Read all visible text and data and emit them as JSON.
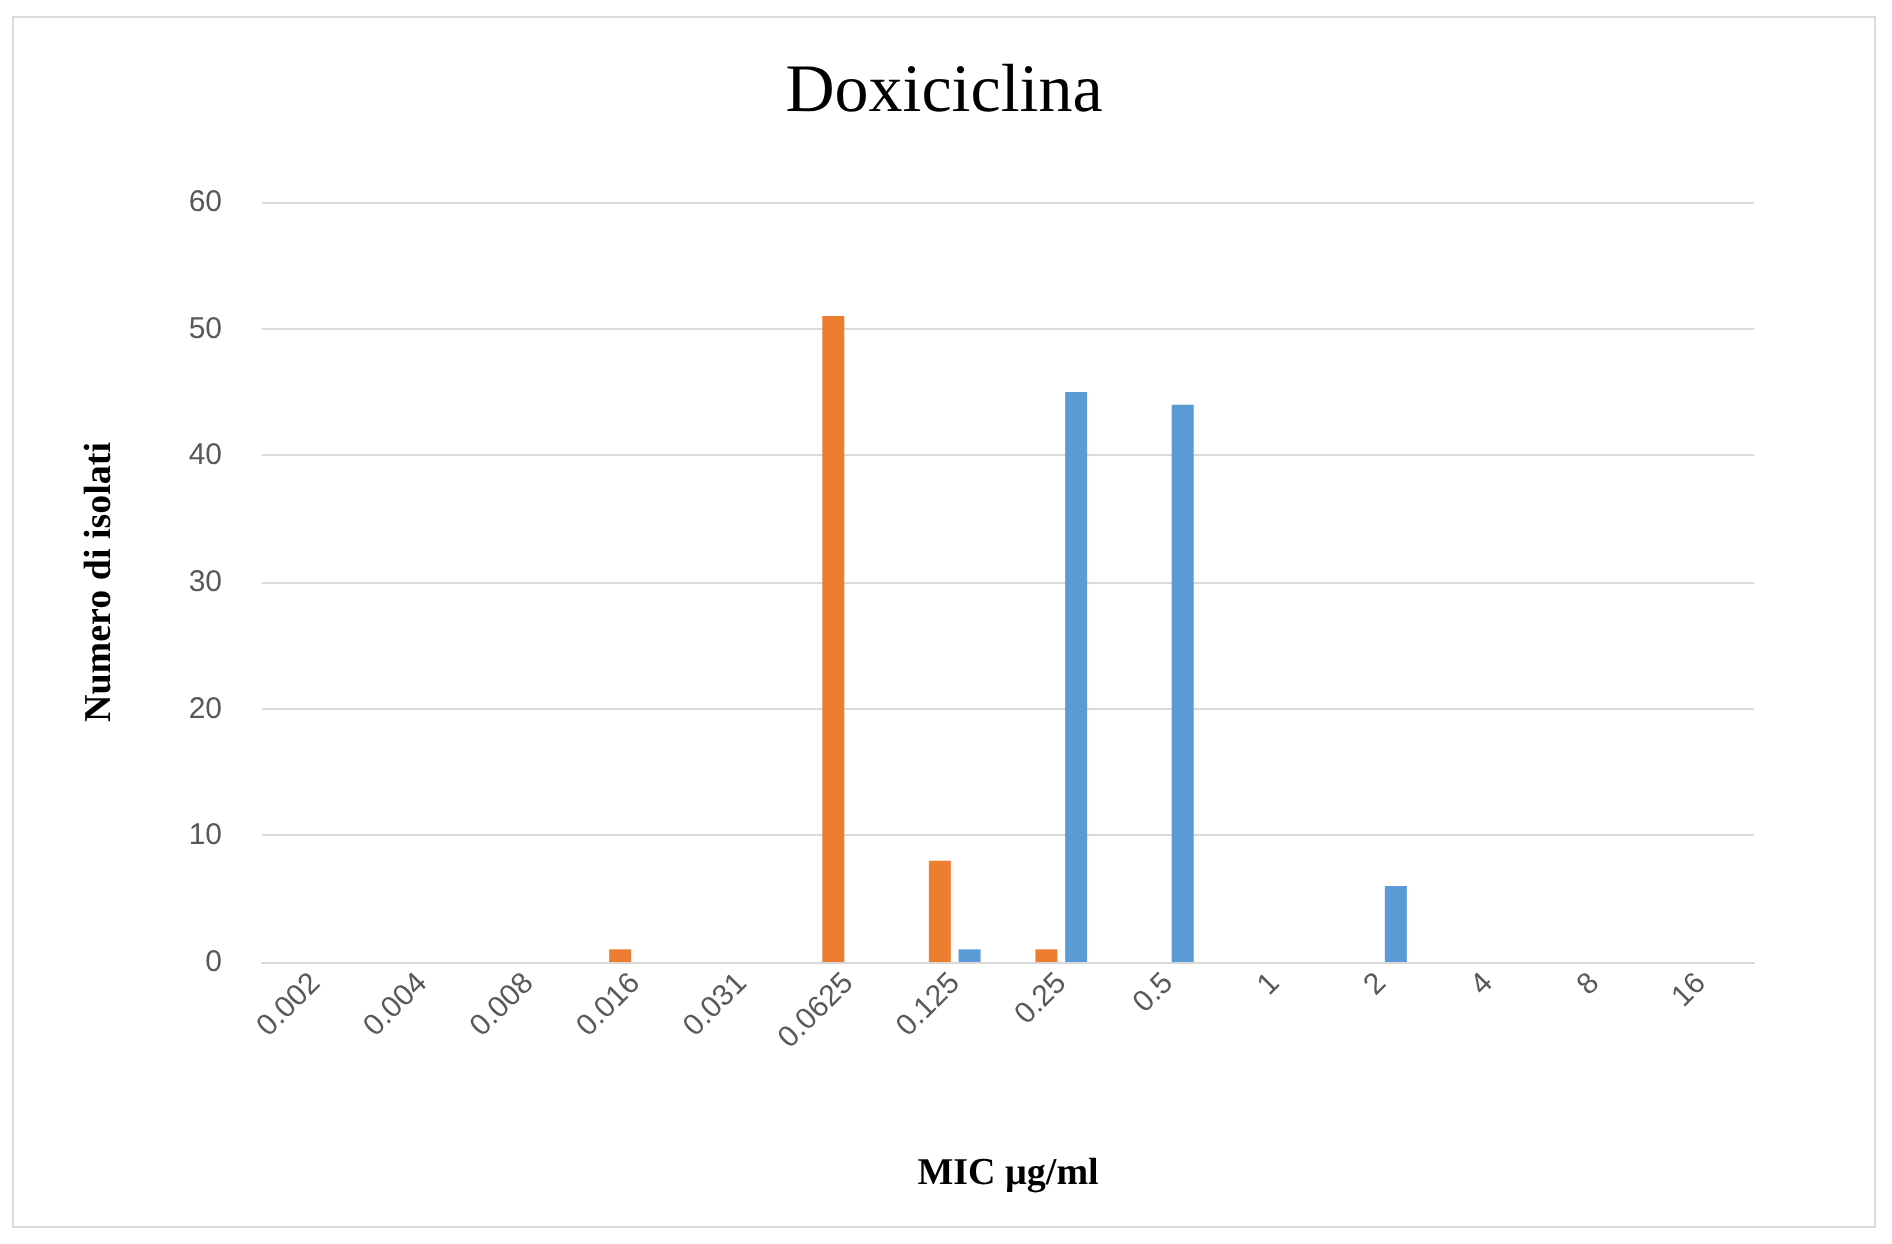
{
  "chart_data": {
    "type": "bar",
    "title": "Doxiciclina",
    "xlabel": "MIC µg/ml",
    "ylabel": "Numero di isolati",
    "categories": [
      "0.002",
      "0.004",
      "0.008",
      "0.016",
      "0.031",
      "0.0625",
      "0.125",
      "0.25",
      "0.5",
      "1",
      "2",
      "4",
      "8",
      "16"
    ],
    "series": [
      {
        "color": "#ed7d31",
        "values": [
          0,
          0,
          0,
          1,
          0,
          51,
          8,
          1,
          0,
          0,
          0,
          0,
          0,
          0
        ]
      },
      {
        "color": "#5b9bd5",
        "values": [
          0,
          0,
          0,
          0,
          0,
          0,
          1,
          45,
          44,
          0,
          6,
          0,
          0,
          0
        ]
      }
    ],
    "ylim": [
      0,
      60
    ],
    "yticks": [
      0,
      10,
      20,
      30,
      40,
      50,
      60
    ],
    "grid": "y"
  }
}
